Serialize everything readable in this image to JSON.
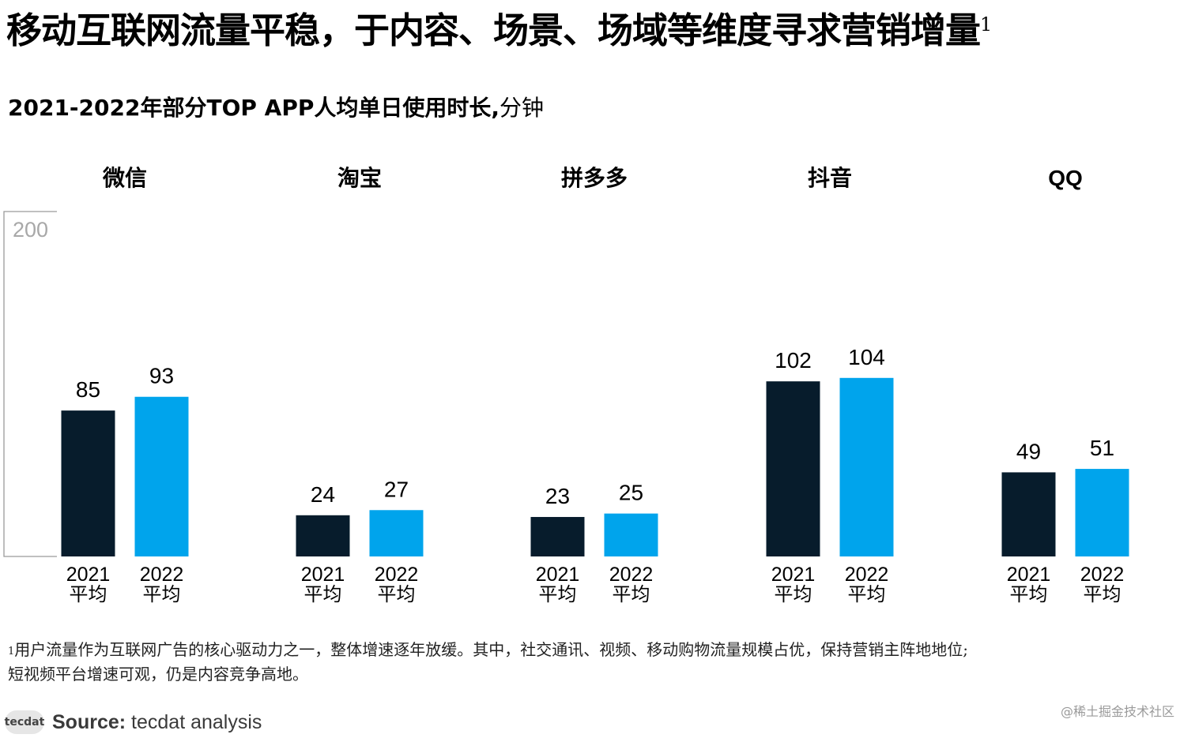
{
  "title": "移动互联网流量平稳，于内容、场景、场域等维度寻求营销增量",
  "title_note_marker": "1",
  "subtitle": "2021-2022年部分TOP APP人均单日使用时长,",
  "subtitle_unit": "分钟",
  "chart_data": {
    "type": "bar",
    "title": "2021-2022年部分TOP APP人均单日使用时长, 分钟",
    "categories": [
      "微信",
      "淘宝",
      "拼多多",
      "抖音",
      "QQ"
    ],
    "series": [
      {
        "name": "2021 平均",
        "color": "#071c2c",
        "values": [
          85,
          24,
          23,
          102,
          49
        ]
      },
      {
        "name": "2022 平均",
        "color": "#00a4ec",
        "values": [
          93,
          27,
          25,
          104,
          51
        ]
      }
    ],
    "bar_labels": [
      [
        "2021",
        "平均"
      ],
      [
        "2022",
        "平均"
      ]
    ],
    "axis_max_label": "200",
    "ylim": [
      0,
      200
    ]
  },
  "footnote": {
    "marker": "1",
    "line1": "用户流量作为互联网广告的核心驱动力之一，整体增速逐年放缓。其中，社交通讯、视频、移动购物流量规模占优，保持营销主阵地地位;",
    "line2": "短视频平台增速可观，仍是内容竞争高地。"
  },
  "source": {
    "logo_text": "tecdat",
    "label": "Source:",
    "text": "tecdat analysis"
  },
  "watermark": "@稀土掘金技术社区",
  "colors": {
    "dark_bar": "#071c2c",
    "light_bar": "#00a4ec",
    "axis": "#9a9a9a"
  }
}
